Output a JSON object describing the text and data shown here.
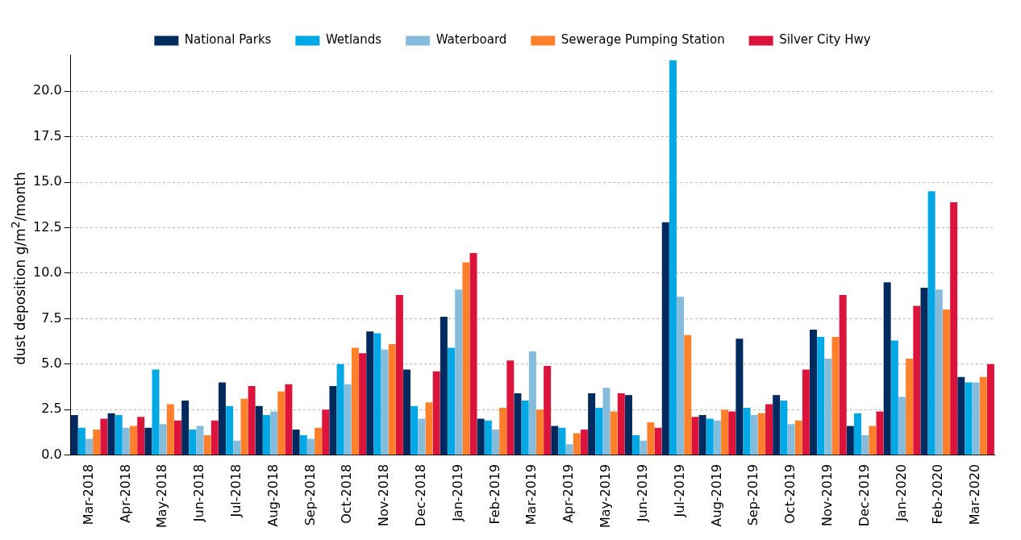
{
  "chart_data": {
    "type": "bar",
    "ylabel": "dust deposition g/m$^{2}$/month",
    "categories": [
      "Mar-2018",
      "Apr-2018",
      "May-2018",
      "Jun-2018",
      "Jul-2018",
      "Aug-2018",
      "Sep-2018",
      "Oct-2018",
      "Nov-2018",
      "Dec-2018",
      "Jan-2019",
      "Feb-2019",
      "Mar-2019",
      "Apr-2019",
      "May-2019",
      "Jun-2019",
      "Jul-2019",
      "Aug-2019",
      "Sep-2019",
      "Oct-2019",
      "Nov-2019",
      "Dec-2019",
      "Jan-2020",
      "Feb-2020",
      "Mar-2020"
    ],
    "series": [
      {
        "name": "National Parks",
        "color": "#012a5e",
        "values": [
          2.2,
          2.3,
          1.5,
          3.0,
          4.0,
          2.7,
          1.4,
          3.8,
          6.8,
          4.7,
          7.6,
          2.0,
          3.4,
          1.6,
          3.4,
          3.3,
          12.8,
          2.2,
          6.4,
          3.3,
          6.9,
          1.6,
          9.5,
          9.2,
          4.3
        ]
      },
      {
        "name": "Wetlands",
        "color": "#00a9e6",
        "values": [
          1.5,
          2.2,
          4.7,
          1.4,
          2.7,
          2.2,
          1.1,
          5.0,
          6.7,
          2.7,
          5.9,
          1.9,
          3.0,
          1.5,
          2.6,
          1.1,
          21.7,
          2.0,
          2.6,
          3.0,
          6.5,
          2.3,
          6.3,
          14.5,
          4.0
        ]
      },
      {
        "name": "Waterboard",
        "color": "#86bcdb",
        "values": [
          0.9,
          1.5,
          1.7,
          1.6,
          0.8,
          2.4,
          0.9,
          3.9,
          5.8,
          2.0,
          9.1,
          1.4,
          5.7,
          0.6,
          3.7,
          0.8,
          8.7,
          1.9,
          2.2,
          1.7,
          5.3,
          1.1,
          3.2,
          9.1,
          4.0
        ]
      },
      {
        "name": "Sewerage Pumping Station",
        "color": "#ff7f2a",
        "values": [
          1.4,
          1.6,
          2.8,
          1.1,
          3.1,
          3.5,
          1.5,
          5.9,
          6.1,
          2.9,
          10.6,
          2.6,
          2.5,
          1.2,
          2.4,
          1.8,
          6.6,
          2.5,
          2.3,
          1.9,
          6.5,
          1.6,
          5.3,
          8.0,
          4.3
        ]
      },
      {
        "name": "Silver City Hwy",
        "color": "#dc143c",
        "values": [
          2.0,
          2.1,
          1.9,
          1.9,
          3.8,
          3.9,
          2.5,
          5.6,
          8.8,
          4.6,
          11.1,
          5.2,
          4.9,
          1.4,
          3.4,
          1.5,
          2.1,
          2.4,
          2.8,
          4.7,
          8.8,
          2.4,
          8.2,
          13.9,
          5.0
        ]
      }
    ],
    "ylim": [
      0,
      22
    ],
    "yticks": [
      {
        "value": 0,
        "label": "0.0"
      },
      2.5,
      {
        "value": 5,
        "label": "5.0"
      },
      7.5,
      {
        "value": 10,
        "label": "10.0"
      },
      12.5,
      {
        "value": 15,
        "label": "15.0"
      },
      17.5,
      {
        "value": 20,
        "label": "20.0"
      }
    ],
    "grid": "y",
    "legend": "top"
  }
}
